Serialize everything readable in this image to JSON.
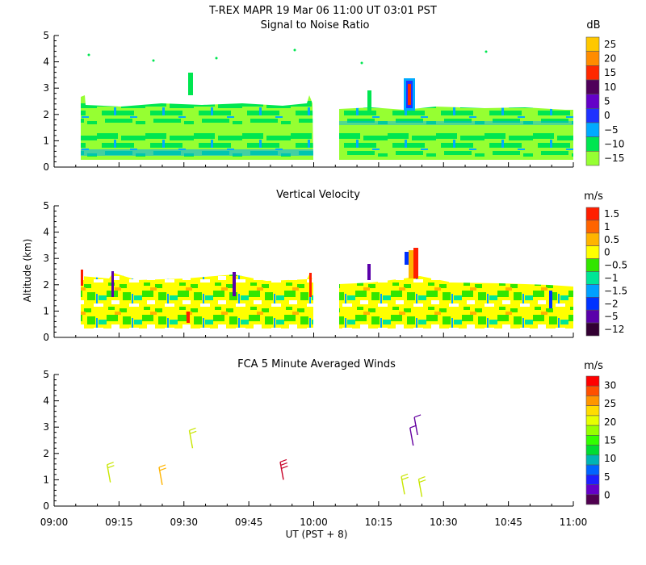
{
  "header": {
    "line1": "T-REX   MAPR 19 Mar 06   11:00 UT   03:01   PST",
    "line2": "Signal to Noise Ratio"
  },
  "chart_data": [
    {
      "type": "heatmap",
      "title": "Signal to Noise Ratio",
      "units": "dB",
      "ylim": [
        0,
        5
      ],
      "yticks": [
        "0",
        "1",
        "2",
        "3",
        "4",
        "5"
      ],
      "xlim_minutes": [
        0,
        120
      ],
      "colorbar": {
        "labels": [
          "25",
          "20",
          "15",
          "10",
          "5",
          "0",
          "−5",
          "−10",
          "−15"
        ],
        "colors": [
          "#ffc800",
          "#ff8c00",
          "#ff2800",
          "#50005a",
          "#6400c8",
          "#1e32ff",
          "#00aaff",
          "#00e650",
          "#96ff32"
        ]
      },
      "segments": [
        {
          "start_min": 6,
          "end_min": 59,
          "top_km": 2.6
        },
        {
          "start_min": 66,
          "end_min": 120,
          "top_km": 2.3
        }
      ],
      "features": [
        {
          "time_min": 83,
          "alt_range_km": [
            2.2,
            3.4
          ],
          "value_db": "10 to 20"
        }
      ]
    },
    {
      "type": "heatmap",
      "title": "Vertical Velocity",
      "units": "m/s",
      "ylim": [
        0,
        5
      ],
      "yticks": [
        "0",
        "1",
        "2",
        "3",
        "4",
        "5"
      ],
      "colorbar": {
        "labels": [
          "1.5",
          "1",
          "0.5",
          "0",
          "−0.5",
          "−1",
          "−1.5",
          "−2",
          "−5",
          "−12"
        ],
        "colors": [
          "#ff1e00",
          "#ff6400",
          "#ffb400",
          "#ffff00",
          "#32e600",
          "#00e696",
          "#00a0ff",
          "#0032ff",
          "#5a00aa",
          "#320032"
        ]
      },
      "segments": [
        {
          "start_min": 6,
          "end_min": 59,
          "top_km": 2.5
        },
        {
          "start_min": 66,
          "end_min": 120,
          "top_km": 2.1
        }
      ]
    },
    {
      "type": "scatter",
      "title": "FCA 5 Minute Averaged Winds",
      "units": "m/s",
      "ylim": [
        0,
        5
      ],
      "yticks": [
        "0",
        "1",
        "2",
        "3",
        "4",
        "5"
      ],
      "colorbar": {
        "labels": [
          "30",
          "25",
          "20",
          "15",
          "10",
          "5",
          "0"
        ],
        "colors": [
          "#ff0000",
          "#ff5000",
          "#ff9600",
          "#ffdc00",
          "#e6ff00",
          "#96ff00",
          "#32ff00",
          "#00dc32",
          "#00b4b4",
          "#0064ff",
          "#1e1eff",
          "#6400c8",
          "#500050"
        ]
      },
      "wind_barbs": [
        {
          "time_min": 13,
          "alt_km": 0.9,
          "speed_ms": 18
        },
        {
          "time_min": 25,
          "alt_km": 0.8,
          "speed_ms": 20
        },
        {
          "time_min": 32,
          "alt_km": 2.2,
          "speed_ms": 16
        },
        {
          "time_min": 53,
          "alt_km": 1.0,
          "speed_ms": 28
        },
        {
          "time_min": 81,
          "alt_km": 0.45,
          "speed_ms": 15
        },
        {
          "time_min": 85,
          "alt_km": 0.35,
          "speed_ms": 15
        },
        {
          "time_min": 83,
          "alt_km": 2.3,
          "speed_ms": 2
        },
        {
          "time_min": 84,
          "alt_km": 2.7,
          "speed_ms": 2
        }
      ]
    }
  ],
  "shared_x": {
    "label": "UT  (PST + 8)",
    "ticks": [
      "09:00",
      "09:15",
      "09:30",
      "09:45",
      "10:00",
      "10:15",
      "10:30",
      "10:45",
      "11:00"
    ],
    "ylabel": "Altitude (km)"
  },
  "panel_titles": [
    "Signal to Noise Ratio",
    "Vertical Velocity",
    "FCA 5 Minute Averaged Winds"
  ],
  "units": [
    "dB",
    "m/s",
    "m/s"
  ]
}
